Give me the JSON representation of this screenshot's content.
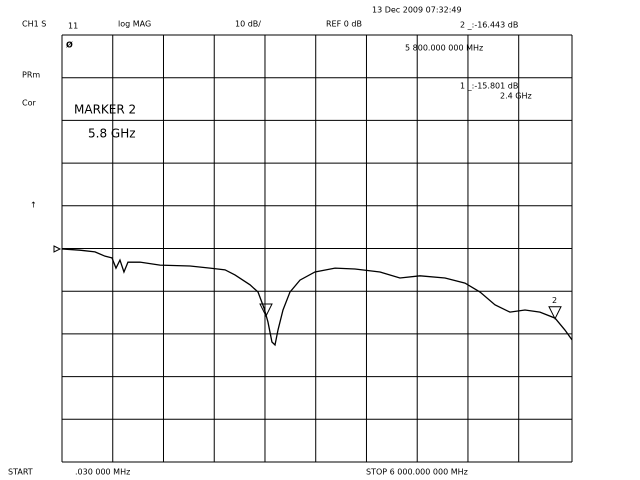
{
  "header": {
    "channel": "CH1 S",
    "param": "11",
    "format": "log MAG",
    "scale": "10 dB/",
    "ref": "REF 0 dB",
    "datetime": "13 Dec 2009 07:32:49",
    "readout2": "2 _:-16.443 dB",
    "readout2_freq": "5 800.000 000 MHz",
    "readout1": "1 _:-15.801 dB",
    "readout1_freq": "2.4 GHz"
  },
  "side": {
    "prm": "PRm",
    "cor": "Cor"
  },
  "annotation": {
    "title": "MARKER 2",
    "freq": "5.8 GHz"
  },
  "footer": {
    "start": "START",
    "start_freq": ".030 000 MHz",
    "stop": "STOP 6 000.000 000 MHz"
  },
  "chart_data": {
    "type": "line",
    "color": "#000000",
    "x": [
      0.03,
      212,
      388,
      506,
      588,
      635,
      682,
      729,
      776,
      918,
      1153,
      1506,
      1741,
      1918,
      2035,
      2212,
      2306,
      2376,
      2423,
      2470,
      2506,
      2541,
      2600,
      2682,
      2800,
      2976,
      3212,
      3447,
      3741,
      3976,
      4212,
      4506,
      4741,
      4918,
      5094,
      5270,
      5447,
      5623,
      5800,
      5917,
      6000
    ],
    "values": [
      -0.1,
      -0.4,
      -0.8,
      -1.8,
      -2.2,
      -4.6,
      -2.7,
      -5.5,
      -3.2,
      -3.2,
      -3.9,
      -4.1,
      -4.6,
      -5.0,
      -6.2,
      -8.5,
      -10.2,
      -13.9,
      -17.2,
      -21.9,
      -22.6,
      -19.1,
      -14.4,
      -10.2,
      -7.4,
      -5.5,
      -4.6,
      -4.8,
      -5.5,
      -6.9,
      -6.4,
      -6.9,
      -8.1,
      -10.2,
      -13.2,
      -14.9,
      -14.4,
      -14.9,
      -16.3,
      -19.1,
      -21.4
    ],
    "xlim": [
      0.03,
      6000
    ],
    "ylim": [
      -50,
      50
    ],
    "xticks": [
      0.03,
      597.027,
      1194.024,
      1791.021,
      2388.018,
      2985.015,
      3582.012,
      4179.009,
      4776.006,
      5373.003,
      6000
    ],
    "yticks": [
      -50,
      -40,
      -30,
      -20,
      -10,
      0,
      10,
      20,
      30,
      40,
      50
    ],
    "grid": true,
    "markers": [
      {
        "x": 2400,
        "value": -15.801
      },
      {
        "x": 5800,
        "value": -16.443,
        "label": "2"
      }
    ]
  }
}
